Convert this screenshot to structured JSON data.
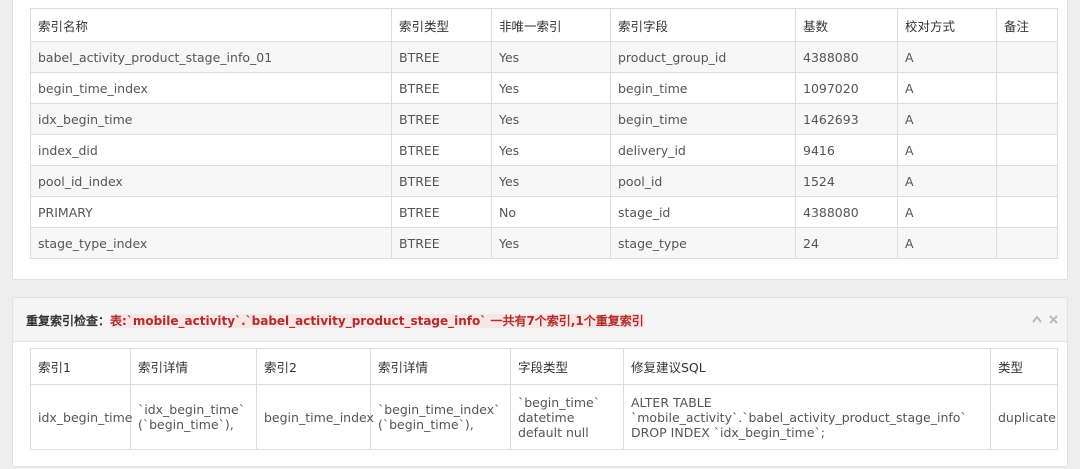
{
  "index_table": {
    "headers": [
      "索引名称",
      "索引类型",
      "非唯一索引",
      "索引字段",
      "基数",
      "校对方式",
      "备注"
    ],
    "rows": [
      [
        "babel_activity_product_stage_info_01",
        "BTREE",
        "Yes",
        "product_group_id",
        "4388080",
        "A",
        null
      ],
      [
        "begin_time_index",
        "BTREE",
        "Yes",
        "begin_time",
        "1097020",
        "A",
        null
      ],
      [
        "idx_begin_time",
        "BTREE",
        "Yes",
        "begin_time",
        "1462693",
        "A",
        null
      ],
      [
        "index_did",
        "BTREE",
        "Yes",
        "delivery_id",
        "9416",
        "A",
        null
      ],
      [
        "pool_id_index",
        "BTREE",
        "Yes",
        "pool_id",
        "1524",
        "A",
        null
      ],
      [
        "PRIMARY",
        "BTREE",
        "No",
        "stage_id",
        "4388080",
        "A",
        null
      ],
      [
        "stage_type_index",
        "BTREE",
        "Yes",
        "stage_type",
        "24",
        "A",
        null
      ]
    ]
  },
  "duplicate_check": {
    "label": "重复索引检查：",
    "summary": "表:`mobile_activity`.`babel_activity_product_stage_info` 一共有7个索引,1个重复索引",
    "table": {
      "headers": [
        "索引1",
        "索引详情",
        "索引2",
        "索引详情",
        "字段类型",
        "修复建议SQL",
        "类型"
      ],
      "rows": [
        [
          "idx_begin_time",
          "`idx_begin_time` (`begin_time`),",
          "begin_time_index",
          "`begin_time_index` (`begin_time`),",
          "`begin_time` datetime default null",
          "ALTER TABLE `mobile_activity`.`babel_activity_product_stage_info` DROP INDEX `idx_begin_time`;",
          "duplicate"
        ]
      ]
    }
  }
}
